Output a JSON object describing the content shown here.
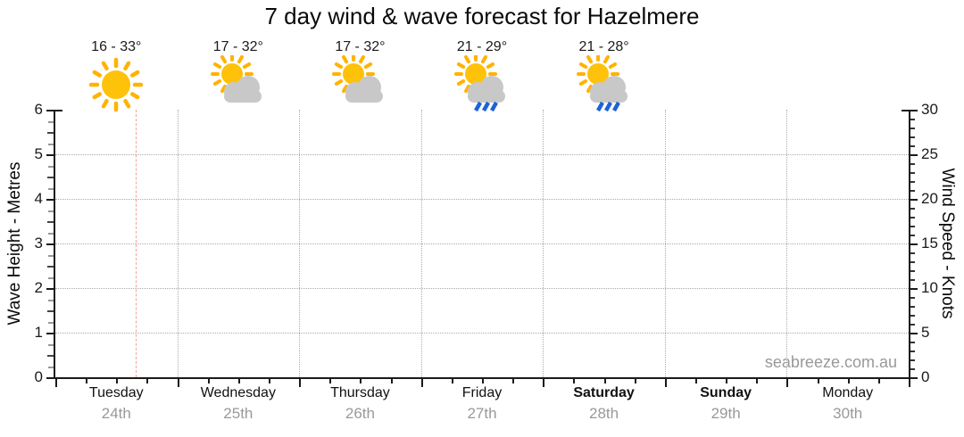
{
  "title": "7 day wind & wave forecast for Hazelmere",
  "watermark": "seabreeze.com.au",
  "colors": {
    "axis": "#1a1a1a",
    "grid": "#ababab",
    "now_line": "#f2a1a1",
    "sun_core": "#FFC20A",
    "sun_ray": "#FFB300",
    "cloud": "#C8C8C8",
    "rain": "#1E62D8",
    "date_text": "#999999",
    "minor_tick_half": "#444444",
    "minor_tick_quarter": "#999999"
  },
  "chart_data": {
    "type": "line",
    "title": "7 day wind & wave forecast for Hazelmere",
    "left_axis": {
      "label": "Wave Height - Metres",
      "min": 0,
      "max": 6,
      "major_step": 1,
      "minor_step": 0.25,
      "ticks": [
        0,
        1,
        2,
        3,
        4,
        5,
        6
      ]
    },
    "right_axis": {
      "label": "Wind Speed - Knots",
      "min": 0,
      "max": 30,
      "major_step": 5,
      "minor_step": 1,
      "ticks": [
        0,
        5,
        10,
        15,
        20,
        25,
        30
      ]
    },
    "x_axis": {
      "categories": [
        "Tuesday",
        "Wednesday",
        "Thursday",
        "Friday",
        "Saturday",
        "Sunday",
        "Monday"
      ],
      "minor_ticks_per_day": 4,
      "gridlines_at_day_boundaries": true
    },
    "grid": "dotted horizontal lines at 1-5 metres, dotted vertical lines at internal day boundaries",
    "legend": "none",
    "series": [],
    "wave_series_values": [],
    "wind_series_values": [],
    "now_marker": {
      "day_index": 0,
      "fraction_of_day": 0.66
    },
    "days": [
      {
        "name": "Tuesday",
        "date": "24th",
        "temp": "16 - 33°",
        "icon": "sunny",
        "bold": false
      },
      {
        "name": "Wednesday",
        "date": "25th",
        "temp": "17 - 32°",
        "icon": "partly-cloudy",
        "bold": false
      },
      {
        "name": "Thursday",
        "date": "26th",
        "temp": "17 - 32°",
        "icon": "partly-cloudy",
        "bold": false
      },
      {
        "name": "Friday",
        "date": "27th",
        "temp": "21 - 29°",
        "icon": "sun-cloud-rain",
        "bold": false
      },
      {
        "name": "Saturday",
        "date": "28th",
        "temp": "21 - 28°",
        "icon": "sun-cloud-rain",
        "bold": true
      },
      {
        "name": "Sunday",
        "date": "29th",
        "temp": "",
        "icon": "none",
        "bold": true
      },
      {
        "name": "Monday",
        "date": "30th",
        "temp": "",
        "icon": "none",
        "bold": false
      }
    ]
  }
}
